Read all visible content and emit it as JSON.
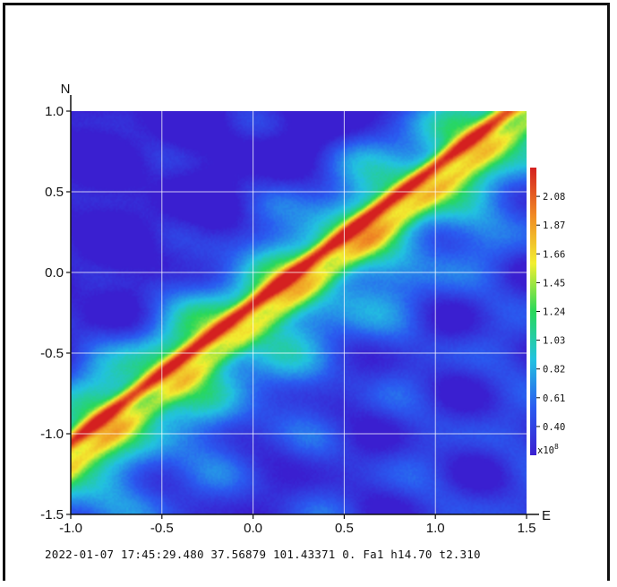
{
  "chart_data": {
    "type": "heatmap",
    "axes": {
      "x_name": "E",
      "y_name": "N",
      "xlim": [
        -1.0,
        1.5
      ],
      "ylim": [
        -1.5,
        1.0
      ],
      "x_ticks": [
        -1.0,
        -0.5,
        0.0,
        0.5,
        1.0,
        1.5
      ],
      "y_ticks": [
        1.0,
        0.5,
        0.0,
        -0.5,
        -1.0,
        -1.5
      ],
      "x_tick_labels": [
        "-1.0",
        "-0.5",
        "0.0",
        "0.5",
        "1.0",
        "1.5"
      ],
      "y_tick_labels": [
        "1.0",
        "0.5",
        "0.0",
        "-0.5",
        "-1.0",
        "-1.5"
      ],
      "grid": true
    },
    "colorbar": {
      "ticks": [
        2.08,
        1.87,
        1.66,
        1.45,
        1.24,
        1.03,
        0.82,
        0.61,
        0.4
      ],
      "tick_labels": [
        "2.08",
        "1.87",
        "1.66",
        "1.45",
        "1.24",
        "1.03",
        "0.82",
        "0.61",
        "0.40"
      ],
      "range": [
        0.19,
        2.29
      ],
      "multiplier_base": "x10",
      "multiplier_exp": "8",
      "colors": [
        "#3a1fd0",
        "#2a5bf0",
        "#22c2e0",
        "#28d85a",
        "#f2ef30",
        "#f08a24",
        "#d42020"
      ]
    },
    "field_description": {
      "ridge_line": [
        [
          -1.0,
          -1.05
        ],
        [
          -0.5,
          -0.72
        ],
        [
          0.0,
          -0.3
        ],
        [
          0.5,
          0.15
        ],
        [
          1.0,
          0.6
        ],
        [
          1.4,
          1.0
        ]
      ],
      "ridge_peak_value": 2.2,
      "background_min_value": 0.3
    }
  },
  "footer": {
    "text": "2022-01-07 17:45:29.480 37.56879 101.43371 0. Fa1 h14.70 t2.310"
  }
}
